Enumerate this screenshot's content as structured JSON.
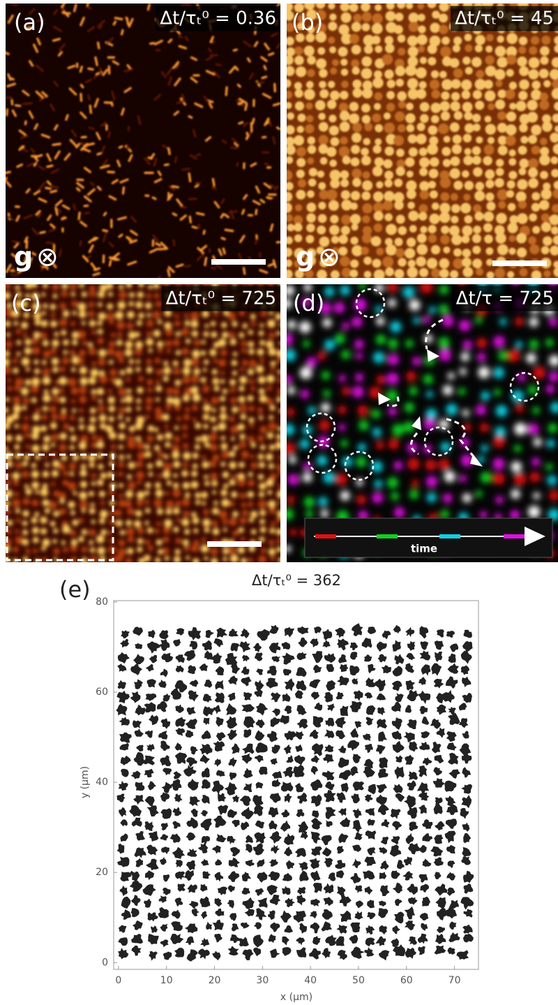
{
  "panels": [
    {
      "label": "(a)",
      "time_label": "Δt/τₜ⁰ = 0.36",
      "gravity": "g",
      "gravity_symbol": "⊗"
    },
    {
      "label": "(b)",
      "time_label": "Δt/τₜ⁰ = 45",
      "gravity": "g",
      "gravity_symbol": "⊗"
    },
    {
      "label": "(c)",
      "time_label": "Δt/τₜ⁰ = 725"
    },
    {
      "label": "(d)",
      "time_label": "Δt/τ = 725",
      "legend": "time"
    }
  ],
  "chart_data": {
    "type": "scatter",
    "label": "(e)",
    "title": "Δt/τₜ⁰ = 362",
    "x_label": "x (μm)",
    "y_label": "y (μm)",
    "xlim": [
      -1,
      75
    ],
    "ylim": [
      -1.5,
      80.3
    ],
    "xticks": [
      0,
      10,
      20,
      30,
      40,
      50,
      60,
      70
    ],
    "yticks": [
      0,
      20,
      40,
      60,
      80
    ],
    "color": "#222222"
  }
}
